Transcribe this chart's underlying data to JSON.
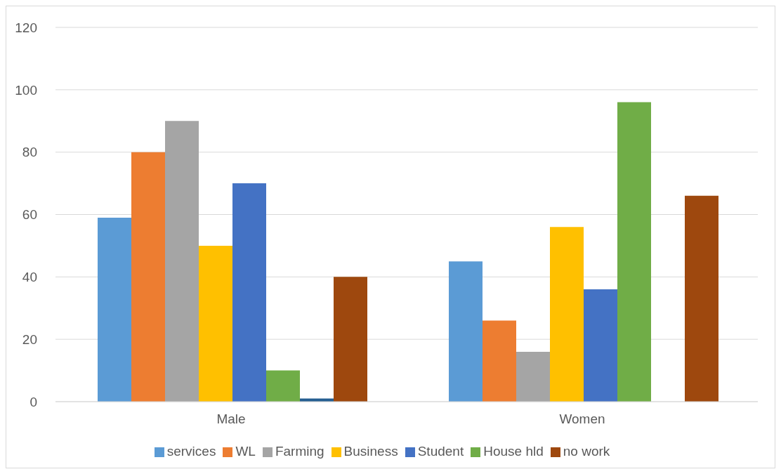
{
  "chart_data": {
    "type": "bar",
    "categories": [
      "Male",
      "Women"
    ],
    "series": [
      {
        "name": "services",
        "color": "#5b9bd5",
        "values": [
          59,
          45
        ]
      },
      {
        "name": "WL",
        "color": "#ed7d31",
        "values": [
          80,
          26
        ]
      },
      {
        "name": "Farming",
        "color": "#a5a5a5",
        "values": [
          90,
          16
        ]
      },
      {
        "name": "Business",
        "color": "#ffc000",
        "values": [
          50,
          56
        ]
      },
      {
        "name": "Student",
        "color": "#4472c4",
        "values": [
          70,
          36
        ]
      },
      {
        "name": "House hld",
        "color": "#70ad47",
        "values": [
          10,
          96
        ]
      },
      {
        "color": "#255e91",
        "values": [
          1,
          null
        ]
      },
      {
        "name": "no work",
        "color": "#9e480e",
        "values": [
          40,
          66
        ]
      }
    ],
    "ylim": [
      0,
      120
    ],
    "yticks": [
      0,
      20,
      40,
      60,
      80,
      100,
      120
    ],
    "grid": "y",
    "legend": "bottom"
  }
}
